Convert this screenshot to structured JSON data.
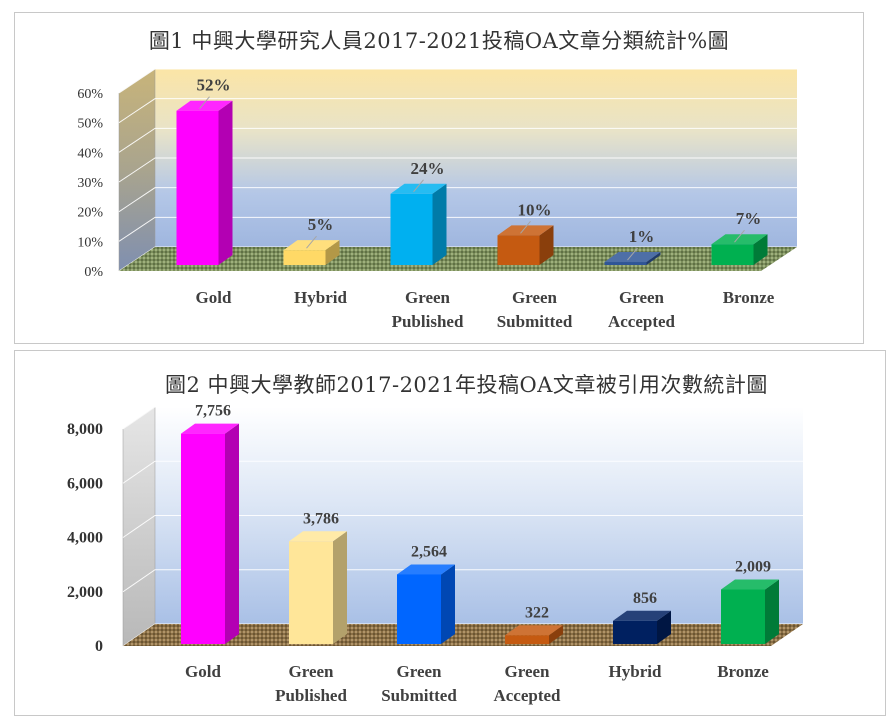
{
  "charts": [
    {
      "title": "圖1 中興大學研究人員2017-2021投稿OA文章分類統計%圖",
      "chart_data": {
        "type": "bar",
        "categories": [
          "Gold",
          "Hybrid",
          "Green Published",
          "Green Submitted",
          "Green Accepted",
          "Bronze"
        ],
        "category_lines": [
          [
            "Gold"
          ],
          [
            "Hybrid"
          ],
          [
            "Green",
            "Published"
          ],
          [
            "Green",
            "Submitted"
          ],
          [
            "Green",
            "Accepted"
          ],
          [
            "Bronze"
          ]
        ],
        "values": [
          52,
          5,
          24,
          10,
          1,
          7
        ],
        "value_labels": [
          "52%",
          "5%",
          "24%",
          "10%",
          "1%",
          "7%"
        ],
        "colors": [
          "#ff00ff",
          "#ffd966",
          "#00b0f0",
          "#c55a11",
          "#2f5597",
          "#00b050"
        ],
        "yticks": [
          "0%",
          "10%",
          "20%",
          "30%",
          "40%",
          "50%",
          "60%"
        ],
        "ylim": [
          0,
          60
        ],
        "grid": true,
        "legend": "none"
      }
    },
    {
      "title": "圖2 中興大學教師2017-2021年投稿OA文章被引用次數統計圖",
      "chart_data": {
        "type": "bar",
        "categories": [
          "Gold",
          "Green Published",
          "Green Submitted",
          "Green Accepted",
          "Hybrid",
          "Bronze"
        ],
        "category_lines": [
          [
            "Gold"
          ],
          [
            "Green",
            "Published"
          ],
          [
            "Green",
            "Submitted"
          ],
          [
            "Green",
            "Accepted"
          ],
          [
            "Hybrid"
          ],
          [
            "Bronze"
          ]
        ],
        "values": [
          7756,
          3786,
          2564,
          322,
          856,
          2009
        ],
        "value_labels": [
          "7,756",
          "3,786",
          "2,564",
          "322",
          "856",
          "2,009"
        ],
        "colors": [
          "#ff00ff",
          "#ffe699",
          "#0066ff",
          "#c55a11",
          "#002060",
          "#00b050"
        ],
        "yticks": [
          "0",
          "2,000",
          "4,000",
          "6,000",
          "8,000"
        ],
        "ylim": [
          0,
          8000
        ],
        "grid": true,
        "legend": "none"
      }
    }
  ]
}
